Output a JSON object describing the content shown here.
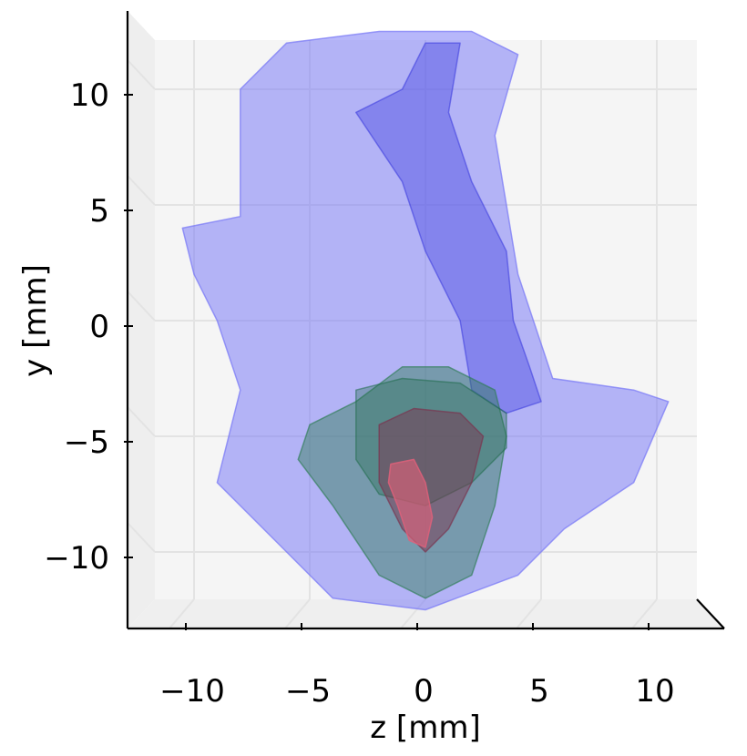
{
  "chart_data": {
    "type": "3d-surface-projection",
    "view": "front (z–y plane), orthographic",
    "xlabel": "z [mm]",
    "ylabel": "y [mm]",
    "xlim": [
      -13,
      13
    ],
    "ylim": [
      -13,
      13
    ],
    "x_ticks": [
      -10,
      -5,
      0,
      5,
      10
    ],
    "x_tick_labels": [
      "−10",
      "−5",
      "0",
      "5",
      "10"
    ],
    "y_ticks": [
      -10,
      -5,
      0,
      5,
      10
    ],
    "y_tick_labels": [
      "−10",
      "−5",
      "0",
      "5",
      "10"
    ],
    "grid": true,
    "pane_color": "#f5f5f5",
    "grid_color": "#e3e3e3",
    "surfaces": [
      {
        "color": "#7b7bf5",
        "opacity": 0.55,
        "outline": [
          [
            -8,
            10
          ],
          [
            -6,
            12
          ],
          [
            -2,
            12.5
          ],
          [
            2,
            12.5
          ],
          [
            4,
            11.5
          ],
          [
            3,
            8
          ],
          [
            3.5,
            5
          ],
          [
            4,
            2
          ],
          [
            5.5,
            -2.5
          ],
          [
            9,
            -3
          ],
          [
            10.5,
            -3.5
          ],
          [
            9,
            -7
          ],
          [
            6,
            -9
          ],
          [
            4,
            -11
          ],
          [
            0,
            -12.5
          ],
          [
            -4,
            -12
          ],
          [
            -6,
            -10
          ],
          [
            -9,
            -7
          ],
          [
            -8,
            -3
          ],
          [
            -9,
            0
          ],
          [
            -10,
            2
          ],
          [
            -10.5,
            4
          ],
          [
            -8,
            4.5
          ],
          [
            -8,
            8
          ]
        ]
      },
      {
        "color": "#3f3fe0",
        "opacity": 0.4,
        "outline": [
          [
            -1,
            10
          ],
          [
            0,
            12
          ],
          [
            1.5,
            12
          ],
          [
            1,
            9
          ],
          [
            2,
            6
          ],
          [
            3.5,
            3
          ],
          [
            3.8,
            0
          ],
          [
            4.5,
            -2
          ],
          [
            5,
            -3.5
          ],
          [
            3.5,
            -4
          ],
          [
            2,
            -3
          ],
          [
            1.5,
            0
          ],
          [
            0,
            3
          ],
          [
            -1,
            6
          ],
          [
            -3,
            9
          ]
        ]
      },
      {
        "color": "#2e7d55",
        "opacity": 0.45,
        "outline": [
          [
            -5,
            -4.5
          ],
          [
            -3,
            -3.5
          ],
          [
            -1,
            -2
          ],
          [
            1,
            -2
          ],
          [
            3,
            -3
          ],
          [
            3.5,
            -5
          ],
          [
            3,
            -8
          ],
          [
            2,
            -11
          ],
          [
            0,
            -12
          ],
          [
            -2,
            -11
          ],
          [
            -4,
            -8
          ],
          [
            -5.5,
            -6
          ]
        ]
      },
      {
        "color": "#1f6b4b",
        "opacity": 0.35,
        "outline": [
          [
            -3,
            -3
          ],
          [
            -1,
            -2.5
          ],
          [
            1.5,
            -2.7
          ],
          [
            3.5,
            -4
          ],
          [
            3.5,
            -5.5
          ],
          [
            2,
            -7
          ],
          [
            0,
            -8
          ],
          [
            -2,
            -7.5
          ],
          [
            -3,
            -6
          ]
        ]
      },
      {
        "color": "#7a3550",
        "opacity": 0.5,
        "outline": [
          [
            -2,
            -4.5
          ],
          [
            -0.5,
            -3.8
          ],
          [
            1.5,
            -4
          ],
          [
            2.5,
            -5
          ],
          [
            2,
            -7
          ],
          [
            1,
            -9
          ],
          [
            0,
            -10
          ],
          [
            -1,
            -9
          ],
          [
            -2,
            -7
          ]
        ]
      },
      {
        "color": "#e2607a",
        "opacity": 0.6,
        "outline": [
          [
            -1.5,
            -6.2
          ],
          [
            -0.5,
            -6
          ],
          [
            0,
            -7
          ],
          [
            0.3,
            -8.5
          ],
          [
            0,
            -9.8
          ],
          [
            -0.7,
            -9.5
          ],
          [
            -1.2,
            -8
          ],
          [
            -1.6,
            -7
          ]
        ]
      }
    ]
  }
}
